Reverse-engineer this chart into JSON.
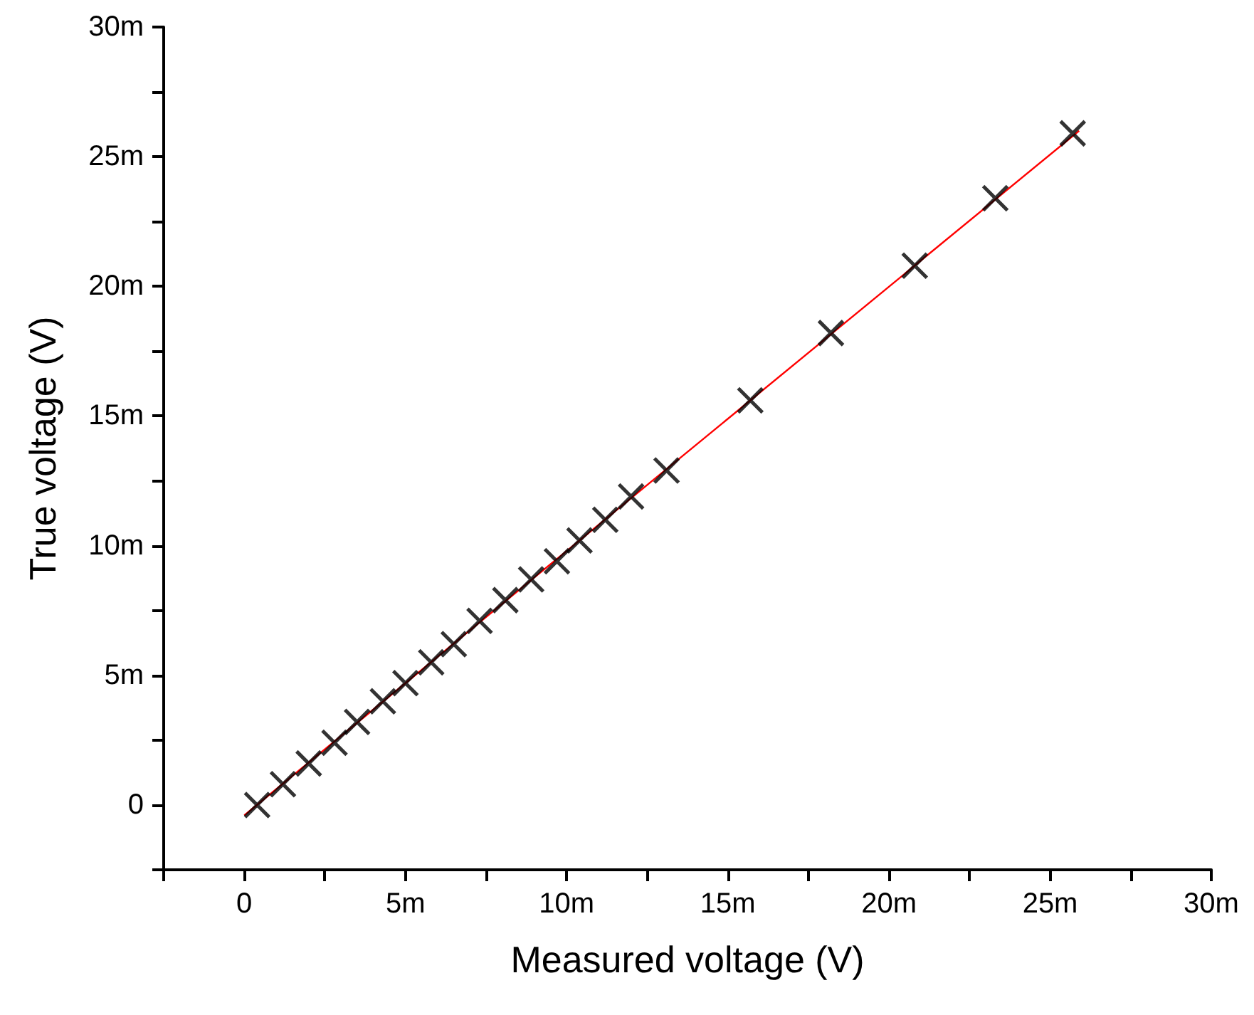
{
  "chart_data": {
    "type": "scatter",
    "xlabel": "Measured voltage (V)",
    "ylabel": "True voltage (V)",
    "series": [
      {
        "color": "#000000",
        "marker": "cross",
        "x": [
          0.4,
          1.2,
          2.0,
          2.8,
          3.5,
          4.3,
          5.0,
          5.8,
          6.5,
          7.3,
          8.1,
          8.9,
          9.7,
          10.4,
          11.2,
          12.0,
          13.1,
          15.7,
          18.2,
          20.8,
          23.3,
          25.7
        ],
        "values": [
          0.0,
          0.8,
          1.6,
          2.4,
          3.2,
          4.0,
          4.7,
          5.5,
          6.2,
          7.1,
          7.9,
          8.7,
          9.4,
          10.2,
          11.0,
          11.9,
          12.9,
          15.6,
          18.2,
          20.8,
          23.4,
          25.9
        ]
      },
      {
        "type": "line",
        "color": "#ff0000",
        "marker": "none",
        "x": [
          0.0,
          25.9
        ],
        "values": [
          -0.4,
          26.0
        ]
      }
    ],
    "xlim": [
      -2.5,
      30
    ],
    "ylim": [
      -2.5,
      30
    ],
    "xticks": [
      {
        "value": -2.5,
        "label": null
      },
      0,
      {
        "value": 2.5,
        "label": null
      },
      {
        "value": 5,
        "label": "5m"
      },
      {
        "value": 7.5,
        "label": null
      },
      {
        "value": 10,
        "label": "10m"
      },
      {
        "value": 12.5,
        "label": null
      },
      {
        "value": 15,
        "label": "15m"
      },
      {
        "value": 17.5,
        "label": null
      },
      {
        "value": 20,
        "label": "20m"
      },
      {
        "value": 22.5,
        "label": null
      },
      {
        "value": 25,
        "label": "25m"
      },
      {
        "value": 27.5,
        "label": null
      },
      {
        "value": 30,
        "label": "30m"
      }
    ],
    "yticks": [
      {
        "value": -2.5,
        "label": null
      },
      0,
      {
        "value": 2.5,
        "label": null
      },
      {
        "value": 5,
        "label": "5m"
      },
      {
        "value": 7.5,
        "label": null
      },
      {
        "value": 10,
        "label": "10m"
      },
      {
        "value": 12.5,
        "label": null
      },
      {
        "value": 15,
        "label": "15m"
      },
      {
        "value": 17.5,
        "label": null
      },
      {
        "value": 20,
        "label": "20m"
      },
      {
        "value": 22.5,
        "label": null
      },
      {
        "value": 25,
        "label": "25m"
      },
      {
        "value": 27.5,
        "label": null
      },
      {
        "value": 30,
        "label": "30m"
      }
    ],
    "grid": false
  }
}
